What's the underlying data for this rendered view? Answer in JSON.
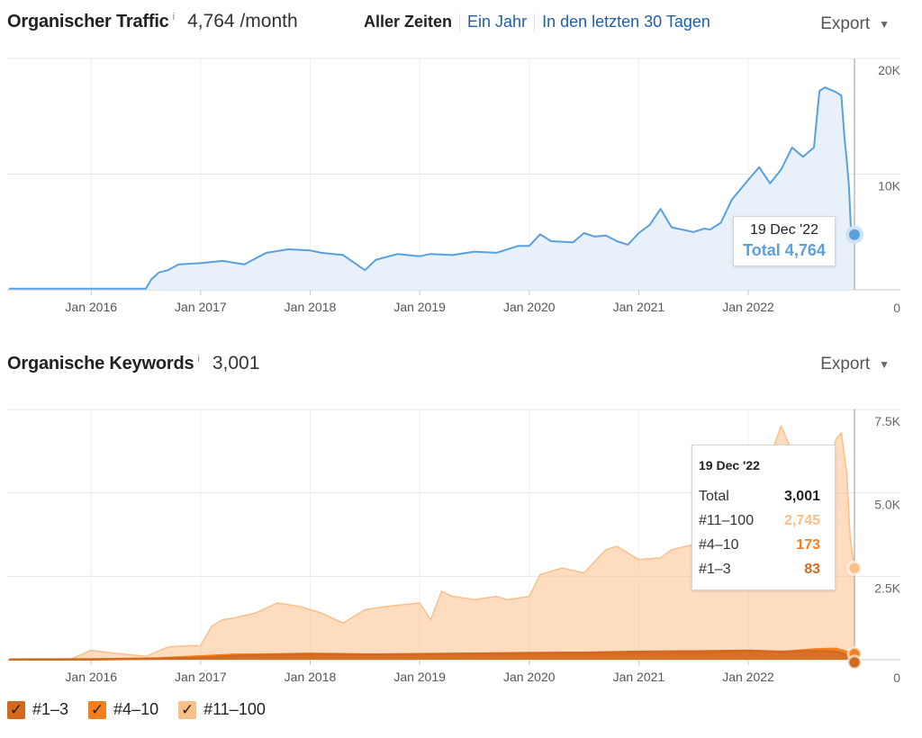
{
  "traffic": {
    "title": "Organischer Traffic",
    "info": "i",
    "value": "4,764 /month",
    "tabs": [
      "Aller Zeiten",
      "Ein Jahr",
      "In den letzten 30 Tagen"
    ],
    "export": "Export",
    "tooltip": {
      "date": "19 Dec '22",
      "total": "Total 4,764"
    }
  },
  "keywords": {
    "title": "Organische Keywords",
    "info": "i",
    "value": "3,001",
    "export": "Export",
    "tooltip": {
      "date": "19 Dec '22",
      "rows": [
        {
          "label": "Total",
          "value": "3,001"
        },
        {
          "label": "#11–100",
          "value": "2,745"
        },
        {
          "label": "#4–10",
          "value": "173"
        },
        {
          "label": "#1–3",
          "value": "83"
        }
      ]
    }
  },
  "legend": [
    {
      "label": "#1–3",
      "color": "#d2691e"
    },
    {
      "label": "#4–10",
      "color": "#f57f1f"
    },
    {
      "label": "#11–100",
      "color": "#fbc08a"
    }
  ],
  "colors": {
    "traffic_line": "#5aa0dd",
    "traffic_fill": "#e8f1fa",
    "link": "#1f5ea8"
  },
  "chart_data": [
    {
      "type": "line",
      "title": "Organischer Traffic",
      "xlabel": "",
      "ylabel": "",
      "x_tick_labels": [
        "Jan 2016",
        "Jan 2017",
        "Jan 2018",
        "Jan 2019",
        "Jan 2020",
        "Jan 2021",
        "Jan 2022"
      ],
      "y_tick_labels": [
        "20K",
        "10K",
        "0"
      ],
      "xlim": [
        2015.25,
        2022.97
      ],
      "ylim": [
        0,
        20000
      ],
      "series": [
        {
          "name": "Total",
          "color": "#5aa0dd",
          "x": [
            2015.25,
            2016.0,
            2016.5,
            2016.55,
            2016.62,
            2016.7,
            2016.8,
            2017.0,
            2017.2,
            2017.4,
            2017.5,
            2017.6,
            2017.8,
            2018.0,
            2018.1,
            2018.3,
            2018.5,
            2018.6,
            2018.8,
            2019.0,
            2019.1,
            2019.3,
            2019.5,
            2019.7,
            2019.9,
            2020.0,
            2020.1,
            2020.2,
            2020.4,
            2020.5,
            2020.6,
            2020.7,
            2020.8,
            2020.9,
            2021.0,
            2021.1,
            2021.2,
            2021.3,
            2021.45,
            2021.5,
            2021.6,
            2021.65,
            2021.75,
            2021.85,
            2022.0,
            2022.1,
            2022.2,
            2022.3,
            2022.4,
            2022.5,
            2022.6,
            2022.65,
            2022.7,
            2022.8,
            2022.85,
            2022.88,
            2022.9,
            2022.92,
            2022.94,
            2022.97
          ],
          "y": [
            100,
            100,
            100,
            900,
            1500,
            1700,
            2200,
            2300,
            2500,
            2200,
            2700,
            3200,
            3500,
            3400,
            3200,
            3000,
            1700,
            2600,
            3100,
            2900,
            3100,
            3000,
            3300,
            3200,
            3800,
            3800,
            4800,
            4200,
            4100,
            4900,
            4600,
            4700,
            4200,
            3900,
            4900,
            5600,
            7000,
            5400,
            5100,
            5000,
            5300,
            5200,
            5800,
            7800,
            9500,
            10600,
            9200,
            10400,
            12300,
            11500,
            12300,
            17200,
            17500,
            17100,
            16800,
            13000,
            11100,
            8900,
            4600,
            4764
          ]
        }
      ]
    },
    {
      "type": "area",
      "title": "Organische Keywords",
      "xlabel": "",
      "ylabel": "",
      "x_tick_labels": [
        "Jan 2016",
        "Jan 2017",
        "Jan 2018",
        "Jan 2019",
        "Jan 2020",
        "Jan 2021",
        "Jan 2022"
      ],
      "y_tick_labels": [
        "7.5K",
        "5.0K",
        "2.5K",
        "0"
      ],
      "xlim": [
        2015.25,
        2022.97
      ],
      "ylim": [
        0,
        7500
      ],
      "series": [
        {
          "name": "#1–3",
          "color": "#d2691e",
          "x": [
            2015.25,
            2016.0,
            2016.6,
            2017.0,
            2017.3,
            2017.6,
            2018.0,
            2018.5,
            2019.0,
            2019.5,
            2020.0,
            2020.5,
            2021.0,
            2021.5,
            2022.0,
            2022.3,
            2022.6,
            2022.8,
            2022.97
          ],
          "y": [
            5,
            10,
            30,
            60,
            110,
            140,
            160,
            150,
            170,
            180,
            200,
            210,
            240,
            250,
            270,
            240,
            260,
            250,
            83
          ]
        },
        {
          "name": "#4–10",
          "color": "#f57f1f",
          "x": [
            2015.25,
            2016.0,
            2016.6,
            2017.0,
            2017.3,
            2017.6,
            2018.0,
            2018.5,
            2019.0,
            2019.5,
            2020.0,
            2020.5,
            2021.0,
            2021.5,
            2022.0,
            2022.3,
            2022.6,
            2022.8,
            2022.97
          ],
          "y": [
            5,
            10,
            40,
            100,
            150,
            160,
            180,
            160,
            150,
            160,
            200,
            180,
            190,
            190,
            260,
            230,
            310,
            330,
            173
          ]
        },
        {
          "name": "#11–100",
          "color": "#fbc08a",
          "x": [
            2015.25,
            2015.8,
            2016.0,
            2016.2,
            2016.5,
            2016.7,
            2016.9,
            2017.0,
            2017.1,
            2017.2,
            2017.3,
            2017.5,
            2017.7,
            2017.9,
            2018.0,
            2018.1,
            2018.3,
            2018.5,
            2018.7,
            2019.0,
            2019.1,
            2019.2,
            2019.3,
            2019.5,
            2019.7,
            2019.8,
            2020.0,
            2020.1,
            2020.3,
            2020.5,
            2020.7,
            2020.8,
            2021.0,
            2021.2,
            2021.3,
            2021.5,
            2021.6,
            2021.8,
            2022.0,
            2022.1,
            2022.15,
            2022.3,
            2022.5,
            2022.6,
            2022.7,
            2022.75,
            2022.8,
            2022.85,
            2022.9,
            2022.93,
            2022.97
          ],
          "y": [
            0,
            0,
            280,
            200,
            100,
            380,
            420,
            420,
            1000,
            1200,
            1250,
            1400,
            1700,
            1600,
            1500,
            1400,
            1100,
            1500,
            1600,
            1700,
            1200,
            2050,
            1900,
            1800,
            1900,
            1800,
            1900,
            2550,
            2750,
            2600,
            3300,
            3400,
            3000,
            3050,
            3300,
            3450,
            3700,
            4550,
            5350,
            5050,
            5650,
            7000,
            5500,
            5300,
            5650,
            5850,
            6600,
            6800,
            5600,
            3700,
            2745
          ]
        }
      ]
    }
  ]
}
